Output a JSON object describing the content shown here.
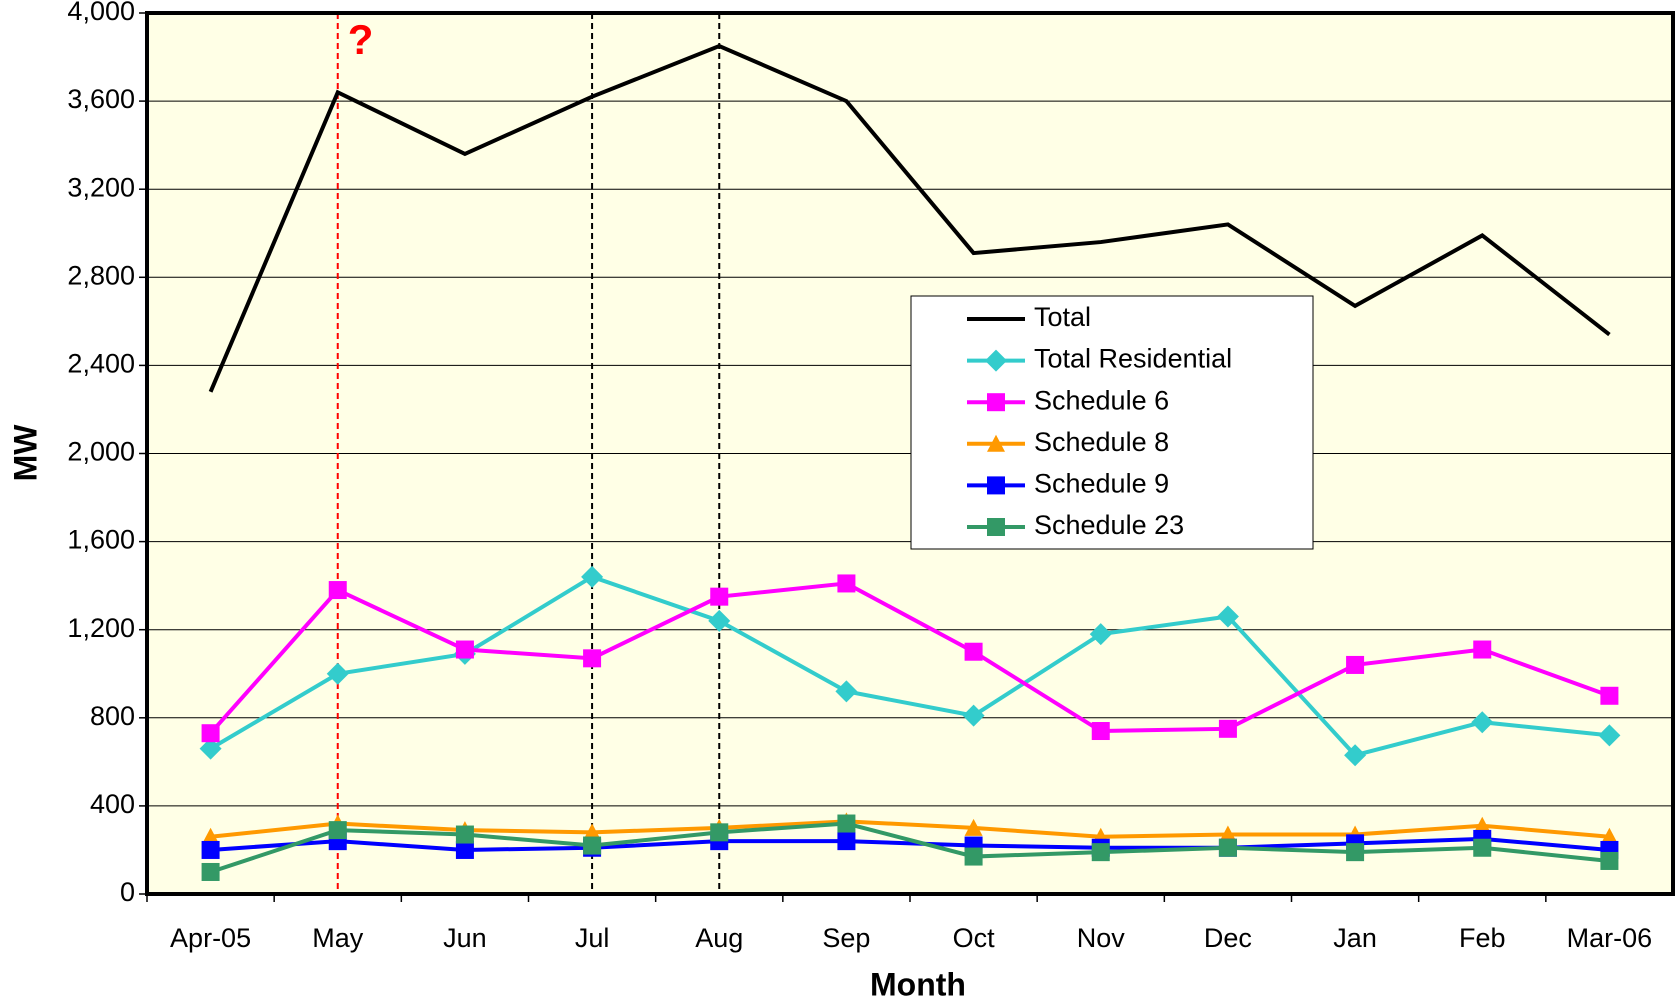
{
  "chart_data": {
    "type": "line",
    "xlabel": "Month",
    "ylabel": "MW",
    "categories": [
      "Apr-05",
      "May",
      "Jun",
      "Jul",
      "Aug",
      "Sep",
      "Oct",
      "Nov",
      "Dec",
      "Jan",
      "Feb",
      "Mar-06"
    ],
    "series": [
      {
        "name": "Total",
        "color": "#000000",
        "marker": "none",
        "values": [
          2280,
          3640,
          3360,
          3620,
          3850,
          3600,
          2910,
          2960,
          3040,
          2670,
          2990,
          2540
        ]
      },
      {
        "name": "Total Residential",
        "color": "#33cccc",
        "marker": "diamond",
        "values": [
          660,
          1000,
          1090,
          1440,
          1240,
          920,
          810,
          1180,
          1260,
          630,
          780,
          720
        ]
      },
      {
        "name": "Schedule 6",
        "color": "#ff00ff",
        "marker": "square",
        "values": [
          730,
          1380,
          1110,
          1070,
          1350,
          1410,
          1100,
          740,
          750,
          1040,
          1110,
          900
        ]
      },
      {
        "name": "Schedule 8",
        "color": "#ff9900",
        "marker": "triangle",
        "values": [
          260,
          320,
          290,
          280,
          300,
          330,
          300,
          260,
          270,
          270,
          310,
          260
        ]
      },
      {
        "name": "Schedule 9",
        "color": "#0000ff",
        "marker": "square",
        "values": [
          200,
          240,
          200,
          210,
          240,
          240,
          220,
          210,
          210,
          230,
          250,
          200
        ]
      },
      {
        "name": "Schedule 23",
        "color": "#339966",
        "marker": "square",
        "values": [
          100,
          290,
          270,
          220,
          280,
          320,
          170,
          190,
          210,
          190,
          210,
          150
        ]
      }
    ],
    "ylim": [
      0,
      4000
    ],
    "yticks": [
      0,
      400,
      800,
      {
        "value": 1200,
        "label": "1,200"
      },
      {
        "value": 1600,
        "label": "1,600"
      },
      {
        "value": 2000,
        "label": "2,000"
      },
      {
        "value": 2400,
        "label": "2,400"
      },
      {
        "value": 2800,
        "label": "2,800"
      },
      {
        "value": 3200,
        "label": "3,200"
      },
      {
        "value": 3600,
        "label": "3,600"
      },
      {
        "value": 4000,
        "label": "4,000"
      }
    ],
    "grid": true,
    "legend": "center-right",
    "reference_lines": [
      {
        "category": "May",
        "color": "#ff0000",
        "annotation": "?"
      },
      {
        "category": "Jul",
        "color": "#000000"
      },
      {
        "category": "Aug",
        "color": "#000000"
      }
    ]
  }
}
